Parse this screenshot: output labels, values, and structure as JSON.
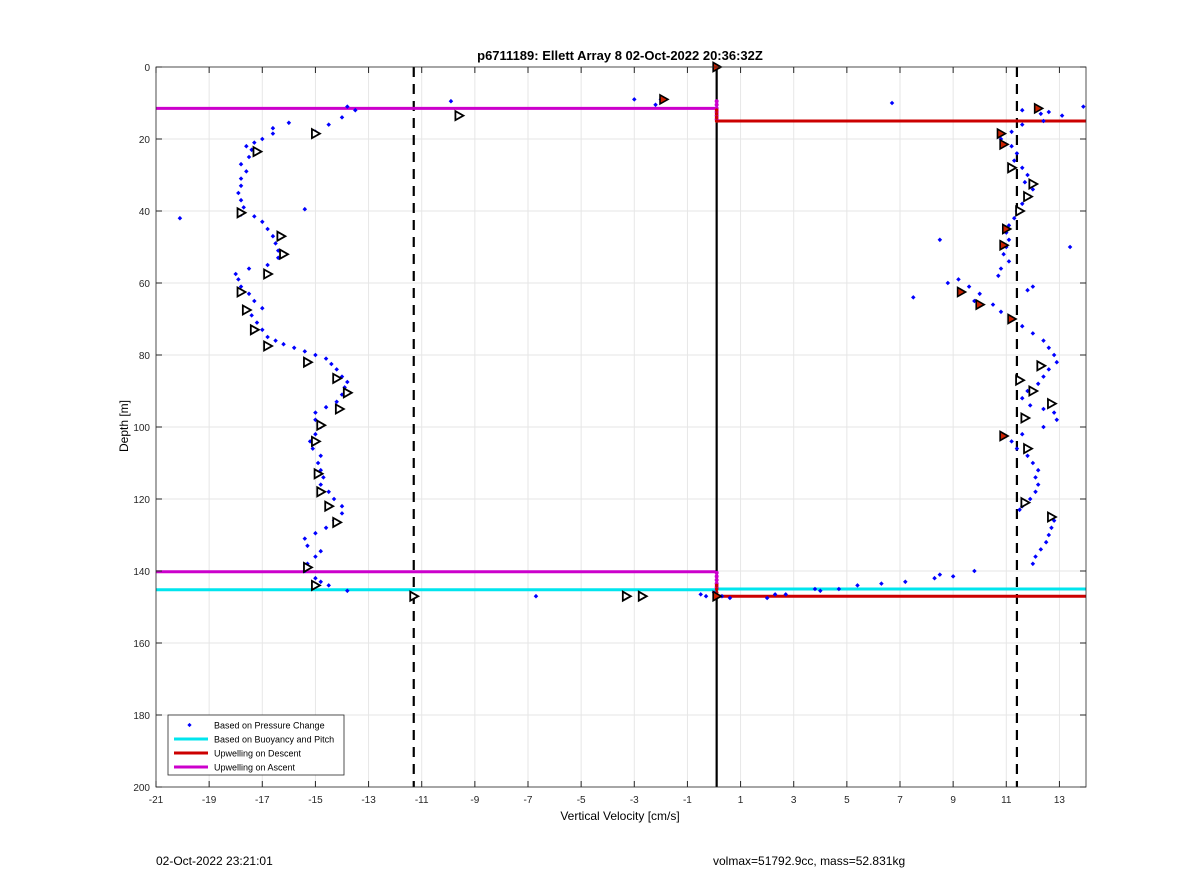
{
  "footer": {
    "left_text": "02-Oct-2022 23:21:01",
    "right_text": "volmax=51792.9cc, mass=52.831kg"
  },
  "chart_data": {
    "type": "scatter",
    "title": "p6711189: Ellett Array 8 02-Oct-2022 20:36:32Z",
    "xlabel": "Vertical Velocity [cm/s]",
    "ylabel": "Depth [m]",
    "xlim": [
      -21,
      14
    ],
    "ylim": [
      0,
      200
    ],
    "y_reversed": true,
    "xticks": [
      -21,
      -19,
      -17,
      -15,
      -13,
      -11,
      -9,
      -7,
      -5,
      -3,
      -1,
      1,
      3,
      5,
      7,
      9,
      11,
      13
    ],
    "yticks": [
      0,
      20,
      40,
      60,
      80,
      100,
      120,
      140,
      160,
      180,
      200
    ],
    "grid": true,
    "legend": {
      "location": "bottom-left",
      "entries": [
        {
          "label": "Based on Pressure Change",
          "color": "#0000ff",
          "style": "dot"
        },
        {
          "label": "Based on Buoyancy and Pitch",
          "color": "#00e5ee",
          "style": "line"
        },
        {
          "label": "Upwelling on Descent",
          "color": "#cc0000",
          "style": "line"
        },
        {
          "label": "Upwelling on Ascent",
          "color": "#cc00cc",
          "style": "line"
        }
      ]
    },
    "colors": {
      "pressure": "#0000ff",
      "buoyancy": "#00e5ee",
      "descent": "#cc0000",
      "ascent": "#cc00cc",
      "grid": "#e6e6e6"
    },
    "reference_lines": {
      "zero_line_x": 0.1,
      "dashed_x": [
        -11.3,
        11.4
      ]
    },
    "series": [
      {
        "name": "Based on Pressure Change",
        "points": [
          [
            -13.8,
            11
          ],
          [
            -13.5,
            12
          ],
          [
            -14.0,
            14
          ],
          [
            -14.5,
            16
          ],
          [
            -15.0,
            18
          ],
          [
            -16.0,
            15.5
          ],
          [
            -16.6,
            17
          ],
          [
            -16.6,
            18.5
          ],
          [
            -17.0,
            20
          ],
          [
            -17.3,
            21
          ],
          [
            -17.6,
            22
          ],
          [
            -17.4,
            23
          ],
          [
            -17.5,
            25
          ],
          [
            -17.8,
            27
          ],
          [
            -17.6,
            29
          ],
          [
            -17.8,
            31
          ],
          [
            -17.8,
            33
          ],
          [
            -17.9,
            35
          ],
          [
            -17.8,
            37
          ],
          [
            -17.7,
            39
          ],
          [
            -17.8,
            41
          ],
          [
            -20.1,
            42
          ],
          [
            -17.3,
            41.5
          ],
          [
            -17.0,
            43
          ],
          [
            -16.8,
            45
          ],
          [
            -16.6,
            47
          ],
          [
            -16.5,
            49
          ],
          [
            -16.4,
            51
          ],
          [
            -16.4,
            53
          ],
          [
            -16.8,
            55
          ],
          [
            -17.5,
            56
          ],
          [
            -18.0,
            57.5
          ],
          [
            -17.9,
            59
          ],
          [
            -17.8,
            61
          ],
          [
            -17.5,
            63
          ],
          [
            -17.3,
            65
          ],
          [
            -17.0,
            67
          ],
          [
            -17.4,
            69
          ],
          [
            -17.2,
            71
          ],
          [
            -17.0,
            73
          ],
          [
            -16.8,
            75
          ],
          [
            -16.5,
            76
          ],
          [
            -16.2,
            77
          ],
          [
            -15.8,
            78
          ],
          [
            -15.4,
            79
          ],
          [
            -15.0,
            80
          ],
          [
            -14.6,
            81
          ],
          [
            -14.4,
            82.5
          ],
          [
            -14.2,
            84
          ],
          [
            -14.0,
            86
          ],
          [
            -13.8,
            87.5
          ],
          [
            -13.9,
            89
          ],
          [
            -14.0,
            91
          ],
          [
            -14.2,
            93
          ],
          [
            -14.6,
            94.5
          ],
          [
            -15.0,
            96
          ],
          [
            -15.0,
            98
          ],
          [
            -14.8,
            100
          ],
          [
            -15.0,
            102
          ],
          [
            -15.2,
            104
          ],
          [
            -15.1,
            106
          ],
          [
            -14.8,
            108
          ],
          [
            -14.9,
            110
          ],
          [
            -14.8,
            112
          ],
          [
            -14.7,
            114
          ],
          [
            -14.8,
            116
          ],
          [
            -14.5,
            118
          ],
          [
            -14.3,
            120
          ],
          [
            -14.0,
            122
          ],
          [
            -14.0,
            124
          ],
          [
            -14.3,
            126
          ],
          [
            -14.6,
            128
          ],
          [
            -15.0,
            129.5
          ],
          [
            -15.4,
            131
          ],
          [
            -15.3,
            133
          ],
          [
            -14.8,
            134.5
          ],
          [
            -15.0,
            136
          ],
          [
            -15.3,
            138
          ],
          [
            -15.4,
            140
          ],
          [
            -15.0,
            142
          ],
          [
            -14.8,
            143
          ],
          [
            -14.5,
            144
          ],
          [
            -13.8,
            145.5
          ],
          [
            -15.4,
            39.5
          ],
          [
            -9.9,
            9.5
          ],
          [
            -3.0,
            9
          ],
          [
            -2.0,
            9
          ],
          [
            -2.2,
            10.5
          ],
          [
            -6.7,
            147
          ],
          [
            -0.5,
            146.5
          ],
          [
            -0.3,
            147
          ],
          [
            0.0,
            146
          ],
          [
            0.3,
            147
          ],
          [
            0.6,
            147.5
          ],
          [
            2.0,
            147.5
          ],
          [
            2.3,
            146.5
          ],
          [
            2.7,
            146.5
          ],
          [
            3.8,
            145
          ],
          [
            4.0,
            145.5
          ],
          [
            4.7,
            145
          ],
          [
            5.4,
            144
          ],
          [
            6.3,
            143.5
          ],
          [
            7.2,
            143
          ],
          [
            8.3,
            142
          ],
          [
            8.5,
            141
          ],
          [
            9.0,
            141.5
          ],
          [
            9.8,
            140
          ],
          [
            6.7,
            10
          ],
          [
            11.6,
            12
          ],
          [
            12.3,
            13
          ],
          [
            12.6,
            12.5
          ],
          [
            13.1,
            13.5
          ],
          [
            13.9,
            11
          ],
          [
            12.4,
            15
          ],
          [
            11.6,
            16
          ],
          [
            11.2,
            18
          ],
          [
            10.8,
            20
          ],
          [
            11.2,
            22
          ],
          [
            11.4,
            24
          ],
          [
            11.3,
            26
          ],
          [
            11.6,
            28
          ],
          [
            11.8,
            30
          ],
          [
            11.7,
            32
          ],
          [
            12.0,
            34
          ],
          [
            11.9,
            36
          ],
          [
            11.6,
            38
          ],
          [
            11.4,
            40
          ],
          [
            11.3,
            42
          ],
          [
            11.1,
            44
          ],
          [
            11.0,
            46
          ],
          [
            11.1,
            48
          ],
          [
            11.0,
            50
          ],
          [
            10.9,
            52
          ],
          [
            11.1,
            54
          ],
          [
            10.8,
            56
          ],
          [
            10.7,
            58
          ],
          [
            8.5,
            48
          ],
          [
            13.4,
            50
          ],
          [
            8.8,
            60
          ],
          [
            9.2,
            59
          ],
          [
            9.6,
            61
          ],
          [
            10.0,
            63
          ],
          [
            9.8,
            65
          ],
          [
            10.5,
            66
          ],
          [
            10.8,
            68
          ],
          [
            11.2,
            70
          ],
          [
            11.6,
            72
          ],
          [
            12.0,
            74
          ],
          [
            12.4,
            76
          ],
          [
            12.6,
            78
          ],
          [
            12.8,
            80
          ],
          [
            12.9,
            82
          ],
          [
            12.6,
            84
          ],
          [
            12.4,
            86
          ],
          [
            12.2,
            88
          ],
          [
            11.8,
            90
          ],
          [
            11.6,
            92
          ],
          [
            11.9,
            94
          ],
          [
            12.4,
            95
          ],
          [
            12.8,
            96
          ],
          [
            12.9,
            98
          ],
          [
            12.4,
            100
          ],
          [
            11.6,
            102
          ],
          [
            11.2,
            104
          ],
          [
            11.4,
            106
          ],
          [
            11.8,
            108
          ],
          [
            12.0,
            110
          ],
          [
            12.2,
            112
          ],
          [
            12.1,
            114
          ],
          [
            12.2,
            116
          ],
          [
            12.1,
            118
          ],
          [
            11.9,
            120
          ],
          [
            11.6,
            122
          ],
          [
            11.5,
            123
          ],
          [
            12.8,
            126
          ],
          [
            12.7,
            128
          ],
          [
            12.6,
            130
          ],
          [
            12.5,
            132
          ],
          [
            12.3,
            134
          ],
          [
            12.1,
            136
          ],
          [
            12.0,
            138
          ],
          [
            7.5,
            64
          ],
          [
            12.0,
            61
          ],
          [
            11.8,
            62
          ]
        ]
      },
      {
        "name": "Based on Buoyancy and Pitch",
        "markers_ascent": [
          [
            -15.0,
            18.5
          ],
          [
            -17.2,
            23.5
          ],
          [
            -17.8,
            40.5
          ],
          [
            -16.3,
            47
          ],
          [
            -16.2,
            52
          ],
          [
            -16.8,
            57.5
          ],
          [
            -17.8,
            62.5
          ],
          [
            -17.6,
            67.5
          ],
          [
            -17.3,
            73
          ],
          [
            -16.8,
            77.5
          ],
          [
            -15.3,
            82
          ],
          [
            -14.2,
            86.5
          ],
          [
            -13.8,
            90.5
          ],
          [
            -14.1,
            95
          ],
          [
            -14.8,
            99.5
          ],
          [
            -15.0,
            104
          ],
          [
            -14.9,
            113
          ],
          [
            -14.8,
            118
          ],
          [
            -14.5,
            122
          ],
          [
            -14.2,
            126.5
          ],
          [
            -15.3,
            139
          ],
          [
            -15.0,
            144
          ],
          [
            -9.6,
            13.5
          ],
          [
            -11.3,
            147
          ],
          [
            -3.3,
            147
          ],
          [
            -2.7,
            147
          ],
          [
            12.0,
            32.5
          ],
          [
            11.8,
            36
          ],
          [
            11.5,
            40
          ],
          [
            11.2,
            28
          ],
          [
            12.3,
            83
          ],
          [
            11.5,
            87
          ],
          [
            12.0,
            90
          ],
          [
            12.7,
            93.5
          ],
          [
            11.7,
            97.5
          ],
          [
            11.8,
            106
          ],
          [
            11.7,
            121
          ],
          [
            12.7,
            125
          ]
        ],
        "markers_descent": [
          [
            -1.9,
            9
          ],
          [
            0.1,
            0
          ],
          [
            12.2,
            11.5
          ],
          [
            10.8,
            18.5
          ],
          [
            10.9,
            21.5
          ],
          [
            11.0,
            45
          ],
          [
            10.9,
            49.5
          ],
          [
            9.3,
            62.5
          ],
          [
            10.0,
            66
          ],
          [
            11.2,
            70
          ],
          [
            10.9,
            102.5
          ],
          [
            0.1,
            147
          ]
        ]
      }
    ],
    "horizontal_lines": [
      {
        "series": "ascent",
        "y": 11.5,
        "x0": -21,
        "x1": 0.1
      },
      {
        "series": "ascent",
        "y": 140.2,
        "x0": -21,
        "x1": 0.1
      },
      {
        "series": "descent",
        "y": 15,
        "x0": 0.1,
        "x1": 14
      },
      {
        "series": "descent",
        "y": 147,
        "x0": 0.1,
        "x1": 14
      },
      {
        "series": "buoyancy",
        "y": 145.2,
        "x0": -21,
        "x1": 0.1
      },
      {
        "series": "buoyancy",
        "y": 145,
        "x0": 0.1,
        "x1": 14
      }
    ],
    "ascent_markers_on_zero": [
      [
        0.1,
        9.5
      ],
      [
        0.1,
        10.5
      ],
      [
        0.1,
        11.5
      ],
      [
        0.1,
        12.5
      ],
      [
        0.1,
        13.5
      ],
      [
        0.1,
        14.5
      ],
      [
        0.1,
        140.5
      ],
      [
        0.1,
        141.5
      ],
      [
        0.1,
        142.5
      ],
      [
        0.1,
        143.5
      ],
      [
        0.1,
        144.5
      ]
    ],
    "descent_markers_on_zero": [
      [
        0.1,
        12
      ],
      [
        0.1,
        13
      ],
      [
        0.1,
        14
      ],
      [
        0.1,
        15
      ],
      [
        0.1,
        144
      ],
      [
        0.1,
        145
      ],
      [
        0.1,
        146
      ]
    ]
  }
}
